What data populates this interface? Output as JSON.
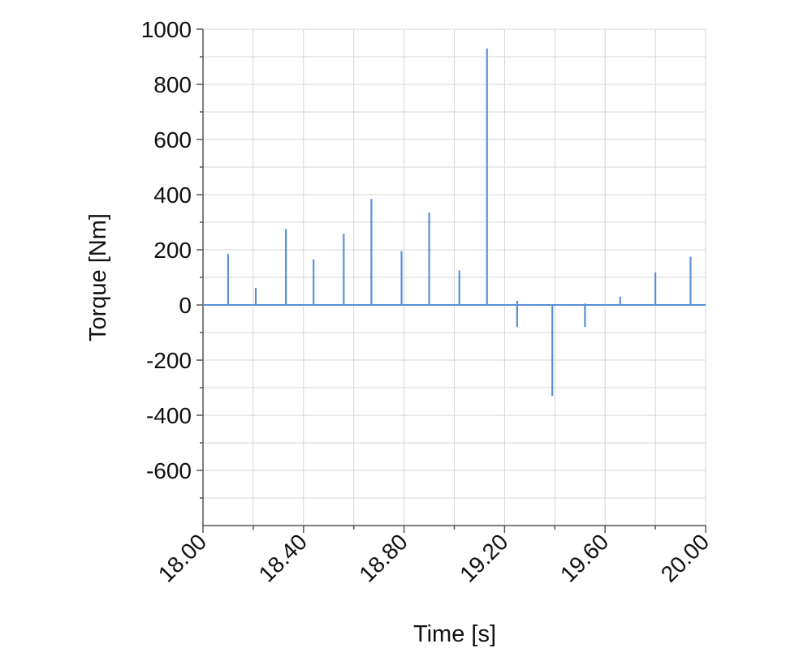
{
  "chart_data": {
    "type": "bar",
    "xlabel": "Time [s]",
    "ylabel": "Torque [Nm]",
    "xlim": [
      18.0,
      20.0
    ],
    "ylim": [
      -800,
      1000
    ],
    "x_ticks": [
      "18.00",
      "18.40",
      "18.80",
      "19.20",
      "19.60",
      "20.00"
    ],
    "x_tick_values": [
      18.0,
      18.4,
      18.8,
      19.2,
      19.6,
      20.0
    ],
    "y_ticks": [
      "1000",
      "800",
      "600",
      "400",
      "200",
      "0",
      "-200",
      "-400",
      "-600"
    ],
    "y_tick_values": [
      1000,
      800,
      600,
      400,
      200,
      0,
      -200,
      -400,
      -600
    ],
    "grid": true,
    "series_color": "#5b8fd8",
    "spikes": [
      {
        "x": 18.1,
        "y": 185
      },
      {
        "x": 18.21,
        "y": 62
      },
      {
        "x": 18.33,
        "y": 275
      },
      {
        "x": 18.44,
        "y": 165
      },
      {
        "x": 18.56,
        "y": 258
      },
      {
        "x": 18.67,
        "y": 385
      },
      {
        "x": 18.79,
        "y": 195
      },
      {
        "x": 18.9,
        "y": 335
      },
      {
        "x": 19.02,
        "y": 125
      },
      {
        "x": 19.13,
        "y": 930
      },
      {
        "x": 19.25,
        "y": 15
      },
      {
        "x": 19.25,
        "y": -80
      },
      {
        "x": 19.39,
        "y": -330
      },
      {
        "x": 19.52,
        "y": 5
      },
      {
        "x": 19.52,
        "y": -80
      },
      {
        "x": 19.66,
        "y": 30
      },
      {
        "x": 19.8,
        "y": 118
      },
      {
        "x": 19.94,
        "y": 175
      }
    ]
  }
}
